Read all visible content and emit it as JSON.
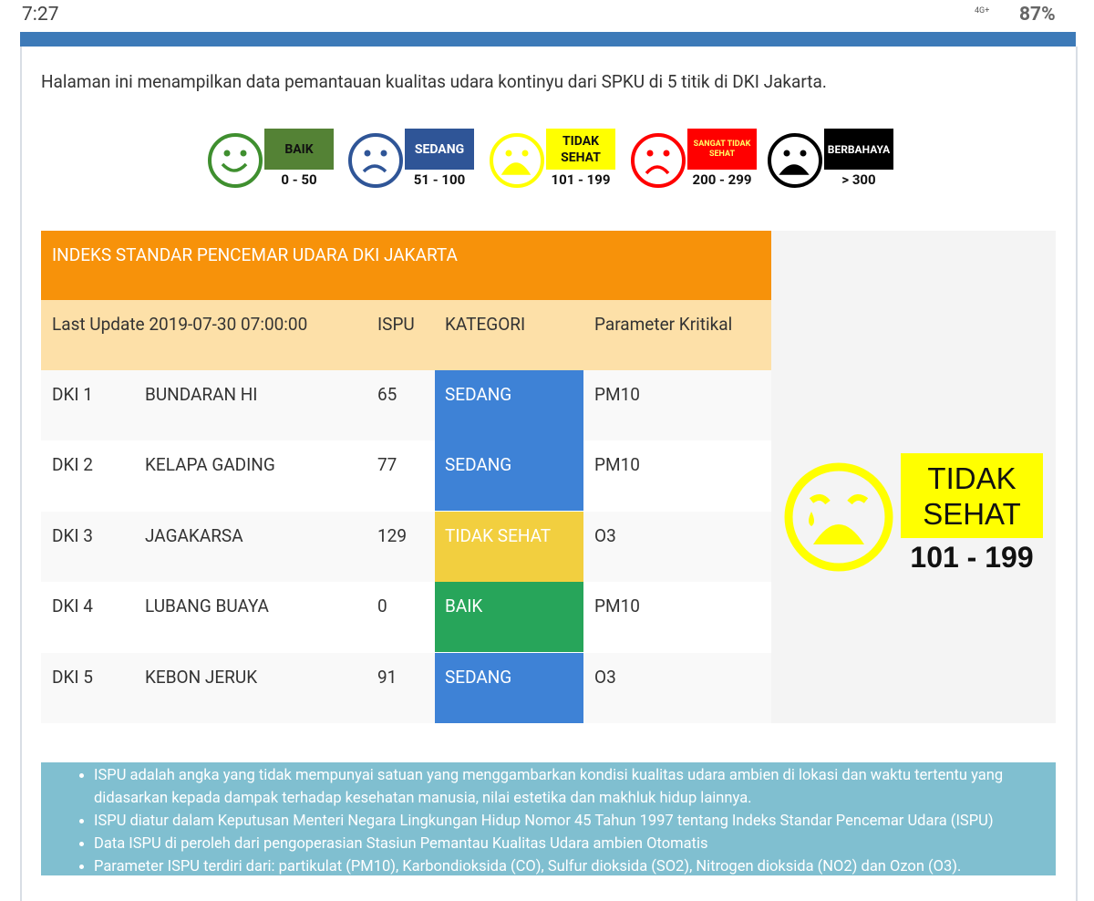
{
  "status_bar": {
    "time": "7:27",
    "network": "4G+",
    "battery": "87%"
  },
  "intro": "Halaman ini menampilkan data pemantauan kualitas udara kontinyu dari SPKU di 5 titik di DKI Jakarta.",
  "legend": [
    {
      "label": "BAIK",
      "range": "0 - 50",
      "color": "#548235",
      "face_color": "#3f8f2f",
      "text_color": "#111"
    },
    {
      "label": "SEDANG",
      "range": "51 - 100",
      "color": "#2f5597",
      "face_color": "#2f5597",
      "text_color": "#fff"
    },
    {
      "label": "TIDAK SEHAT",
      "range": "101 - 199",
      "color": "#ffff00",
      "face_color": "#ffff00",
      "text_color": "#111"
    },
    {
      "label": "SANGAT TIDAK SEHAT",
      "range": "200 - 299",
      "color": "#ff0000",
      "face_color": "#ff0000",
      "text_color": "#ffff66"
    },
    {
      "label": "BERBAHAYA",
      "range": "> 300",
      "color": "#000000",
      "face_color": "#000000",
      "text_color": "#fff"
    }
  ],
  "table": {
    "title": "INDEKS STANDAR PENCEMAR UDARA DKI JAKARTA",
    "header": [
      "Last Update 2019-07-30 07:00:00",
      "ISPU",
      "KATEGORI",
      "Parameter Kritikal"
    ],
    "rows": [
      {
        "id": "DKI 1",
        "lokasi": "BUNDARAN HI",
        "ispu": 65,
        "kategori": "SEDANG",
        "parameter": "PM10",
        "color": "#3e82d6"
      },
      {
        "id": "DKI 2",
        "lokasi": "KELAPA GADING",
        "ispu": 77,
        "kategori": "SEDANG",
        "parameter": "PM10",
        "color": "#3e82d6"
      },
      {
        "id": "DKI 3",
        "lokasi": "JAGAKARSA",
        "ispu": 129,
        "kategori": "TIDAK SEHAT",
        "parameter": "O3",
        "color": "#f2cf3f"
      },
      {
        "id": "DKI 4",
        "lokasi": "LUBANG BUAYA",
        "ispu": 0,
        "kategori": "BAIK",
        "parameter": "PM10",
        "color": "#27a55a"
      },
      {
        "id": "DKI 5",
        "lokasi": "KEBON JERUK",
        "ispu": 91,
        "kategori": "SEDANG",
        "parameter": "O3",
        "color": "#3e82d6"
      }
    ]
  },
  "summary": {
    "label": "TIDAK SEHAT",
    "range": "101 - 199",
    "color": "#ffff00"
  },
  "notes": [
    "ISPU adalah angka yang tidak mempunyai satuan yang menggambarkan kondisi kualitas udara ambien di lokasi dan waktu tertentu yang didasarkan kepada dampak terhadap kesehatan manusia, nilai estetika dan makhluk hidup lainnya.",
    "ISPU diatur dalam Keputusan Menteri Negara Lingkungan Hidup Nomor 45 Tahun 1997 tentang Indeks Standar Pencemar Udara (ISPU)",
    "Data ISPU di peroleh dari pengoperasian Stasiun Pemantau Kualitas Udara ambien Otomatis",
    "Parameter ISPU terdiri dari: partikulat (PM10), Karbondioksida (CO), Sulfur dioksida (SO2), Nitrogen dioksida (NO2) dan Ozon (O3)."
  ]
}
